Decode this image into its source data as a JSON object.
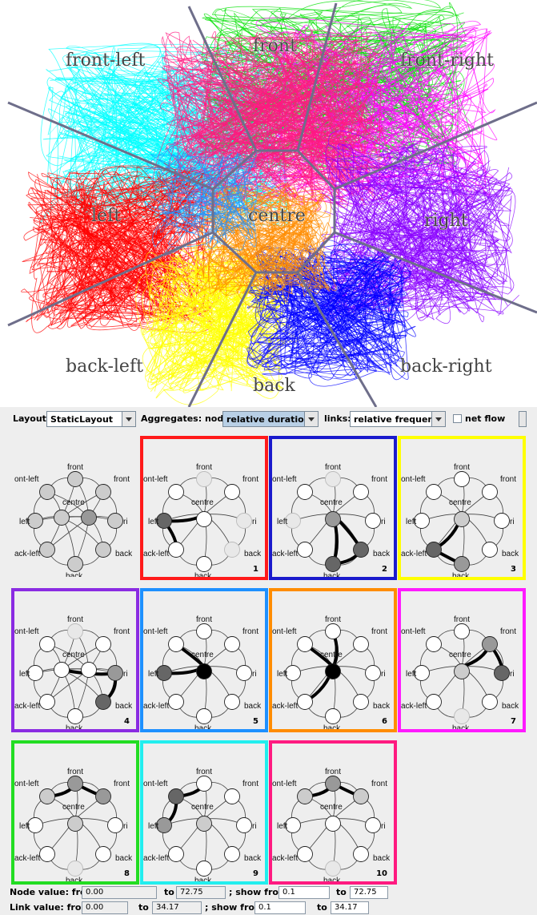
{
  "sectors": {
    "front_left": "front-left",
    "front": "front",
    "front_right": "front-right",
    "left": "left",
    "centre": "centre",
    "right": "right",
    "back_left": "back-left",
    "back": "back",
    "back_right": "back-right"
  },
  "toolbar": {
    "layout_label": "Layout:",
    "layout_value": "StaticLayout",
    "aggregates_label": "Aggregates: nodes:",
    "nodes_value": "relative duration",
    "links_label": "links:",
    "links_value": "relative frequency",
    "netflow_label": "net flow"
  },
  "graph_labels": {
    "front": "front",
    "front_left": "ont-left",
    "front_right": "front",
    "left": "left",
    "right": "ri",
    "centre": "centre",
    "back_left": "ack-left",
    "back_right": "back",
    "back": "back"
  },
  "panels": [
    {
      "number": "",
      "border": "#eeeeee"
    },
    {
      "number": "1",
      "border": "#ff1a1a"
    },
    {
      "number": "2",
      "border": "#1a1acc"
    },
    {
      "number": "3",
      "border": "#ffff00"
    },
    {
      "number": "4",
      "border": "#8a2be2"
    },
    {
      "number": "5",
      "border": "#1e90ff"
    },
    {
      "number": "6",
      "border": "#ff8c00"
    },
    {
      "number": "7",
      "border": "#ff1aff"
    },
    {
      "number": "8",
      "border": "#22dd22"
    },
    {
      "number": "9",
      "border": "#22eeee"
    },
    {
      "number": "10",
      "border": "#ff1a80"
    }
  ],
  "footer": {
    "node_label": "Node value: from",
    "node_from": "0.00",
    "to_label": "to",
    "node_to": "72.75",
    "show_from_label": "; show from",
    "node_show_from": "0.1",
    "node_show_to": "72.75",
    "link_label": "Link value: from",
    "link_from": "0.00",
    "link_to": "34.17",
    "link_show_from": "0.1",
    "link_show_to": "34.17"
  },
  "colors": {
    "red": "#ff0000",
    "blue": "#0000ff",
    "yellow": "#ffff00",
    "violet": "#8a00ff",
    "azure": "#1e90ff",
    "orange": "#ff8c00",
    "magenta": "#ff00ff",
    "green": "#00e000",
    "cyan": "#00ffff",
    "pink": "#ff1a80"
  }
}
